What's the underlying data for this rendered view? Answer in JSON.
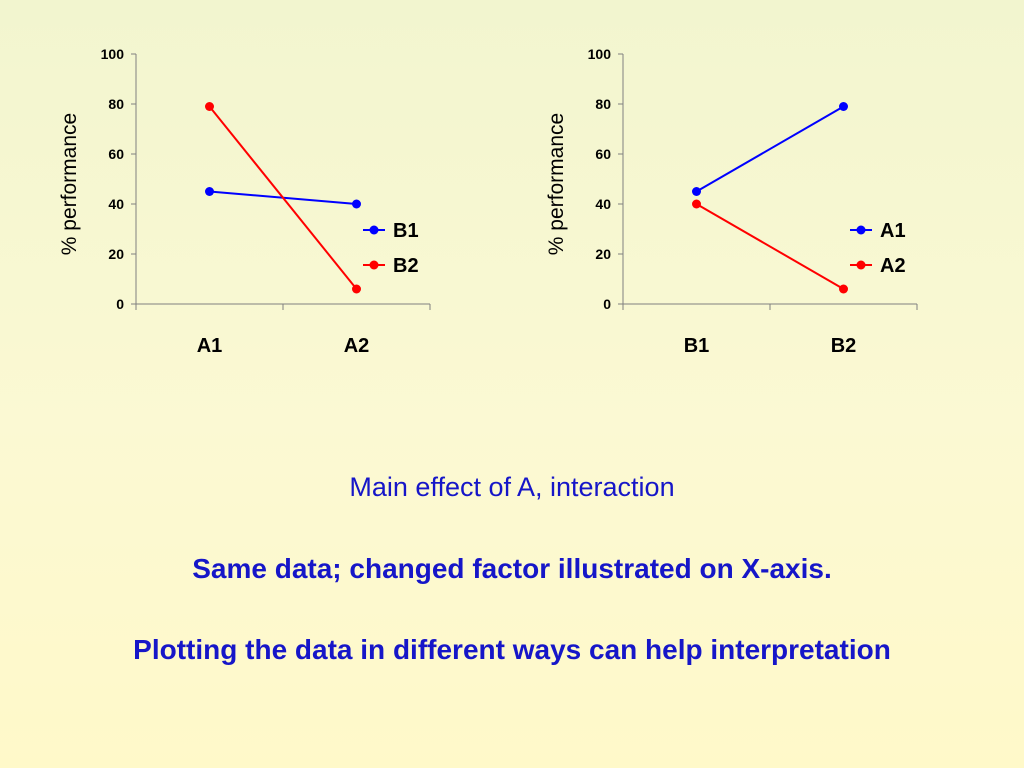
{
  "chart_data": [
    {
      "type": "line",
      "categories": [
        "A1",
        "A2"
      ],
      "series": [
        {
          "name": "B1",
          "values": [
            45,
            40
          ],
          "color": "#0000ff"
        },
        {
          "name": "B2",
          "values": [
            79,
            6
          ],
          "color": "#ff0000"
        }
      ],
      "xlabel": "",
      "ylabel": "% performance",
      "ylim": [
        0,
        100
      ],
      "yticks": [
        0,
        20,
        40,
        60,
        80,
        100
      ],
      "grid": false,
      "legend": "right"
    },
    {
      "type": "line",
      "categories": [
        "B1",
        "B2"
      ],
      "series": [
        {
          "name": "A1",
          "values": [
            45,
            79
          ],
          "color": "#0000ff"
        },
        {
          "name": "A2",
          "values": [
            40,
            6
          ],
          "color": "#ff0000"
        }
      ],
      "xlabel": "",
      "ylabel": "% performance",
      "ylim": [
        0,
        100
      ],
      "yticks": [
        0,
        20,
        40,
        60,
        80,
        100
      ],
      "grid": false,
      "legend": "right"
    }
  ],
  "captions": [
    "Main effect of A, interaction",
    "Same data; changed factor illustrated on X-axis.",
    "Plotting the data in different ways can help interpretation"
  ],
  "colors": {
    "caption": "#1616c8",
    "background": "#fbf9d3"
  }
}
